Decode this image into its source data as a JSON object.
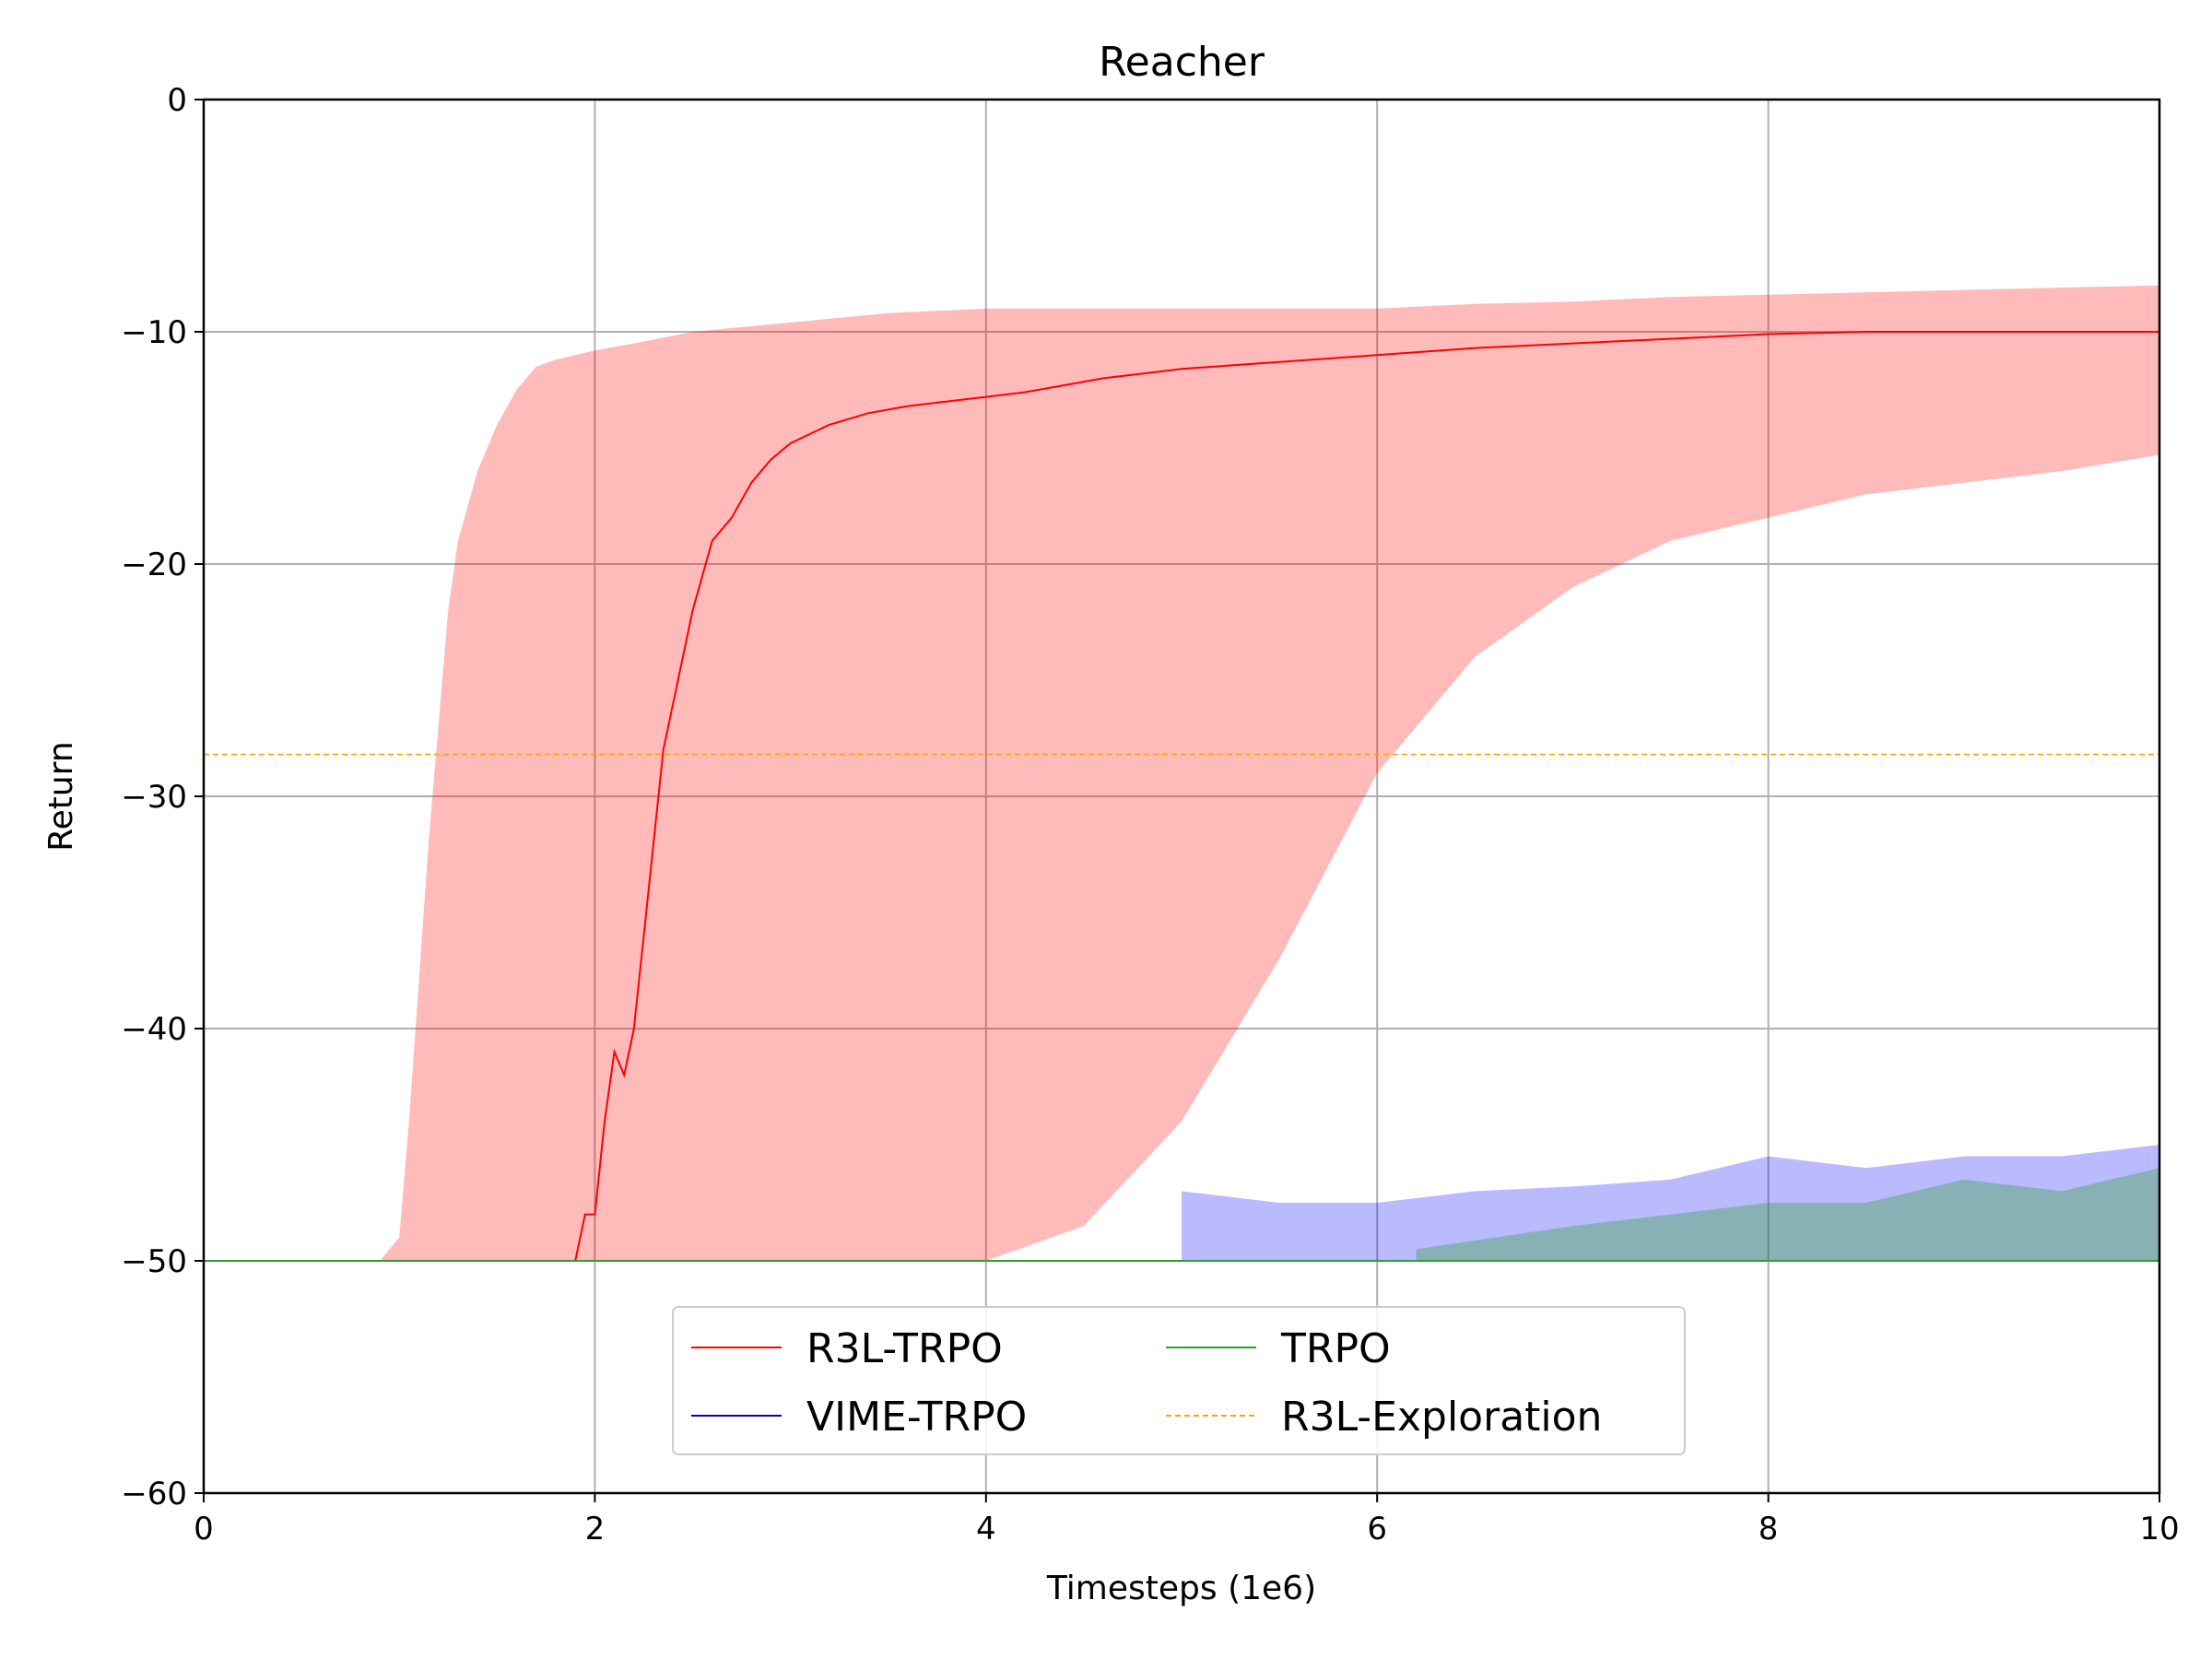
{
  "chart_data": {
    "type": "line",
    "title": "Reacher",
    "xlabel": "Timesteps (1e6)",
    "ylabel": "Return",
    "xlim": [
      0,
      10
    ],
    "ylim": [
      -60,
      0
    ],
    "xticks": [
      "0",
      "2",
      "4",
      "6",
      "8",
      "10"
    ],
    "yticks": [
      "0",
      "−10",
      "−20",
      "−30",
      "−40",
      "−50",
      "−60"
    ],
    "grid": true,
    "legend_position": "bottom-center",
    "series": [
      {
        "name": "R3L-TRPO",
        "color": "#ff0000",
        "style": "solid",
        "x": [
          0,
          1.9,
          1.95,
          2.0,
          2.05,
          2.1,
          2.15,
          2.2,
          2.25,
          2.3,
          2.35,
          2.4,
          2.45,
          2.5,
          2.6,
          2.7,
          2.8,
          2.9,
          3.0,
          3.2,
          3.4,
          3.6,
          3.8,
          4.0,
          4.2,
          4.4,
          4.6,
          4.8,
          5.0,
          5.5,
          6.0,
          6.5,
          7.0,
          7.5,
          8.0,
          8.5,
          9.0,
          9.5,
          10.0
        ],
        "mean": [
          -50,
          -50,
          -48,
          -48,
          -44,
          -41,
          -42,
          -40,
          -36,
          -32,
          -28,
          -26,
          -24,
          -22,
          -19,
          -18,
          -16.5,
          -15.5,
          -14.8,
          -14.0,
          -13.5,
          -13.2,
          -13.0,
          -12.8,
          -12.6,
          -12.3,
          -12.0,
          -11.8,
          -11.6,
          -11.3,
          -11.0,
          -10.7,
          -10.5,
          -10.3,
          -10.1,
          -10.0,
          -10.0,
          -10.0,
          -10.0
        ],
        "band_x": [
          0,
          0.9,
          1.0,
          1.05,
          1.1,
          1.15,
          1.2,
          1.25,
          1.3,
          1.4,
          1.5,
          1.6,
          1.7,
          1.8,
          1.9,
          2.0,
          2.2,
          2.5,
          3.0,
          3.5,
          4.0,
          4.5,
          5.0,
          5.5,
          6.0,
          6.5,
          7.0,
          7.5,
          8.0,
          8.5,
          9.0,
          9.5,
          10.0
        ],
        "band_upper": [
          -50,
          -50,
          -49,
          -44,
          -38,
          -32,
          -27,
          -22,
          -19,
          -16,
          -14,
          -12.5,
          -11.5,
          -11.2,
          -11.0,
          -10.8,
          -10.5,
          -10.0,
          -9.6,
          -9.2,
          -9.0,
          -9.0,
          -9.0,
          -9.0,
          -9.0,
          -8.8,
          -8.7,
          -8.5,
          -8.4,
          -8.3,
          -8.2,
          -8.1,
          -8.0
        ],
        "band_lower": [
          -50,
          -50,
          -50,
          -50,
          -50,
          -50,
          -50,
          -50,
          -50,
          -50,
          -50,
          -50,
          -50,
          -50,
          -50,
          -50,
          -50,
          -50,
          -50,
          -50,
          -50,
          -48.5,
          -44,
          -37,
          -29,
          -24,
          -21,
          -19,
          -18,
          -17,
          -16.5,
          -16.0,
          -15.3
        ]
      },
      {
        "name": "VIME-TRPO",
        "color": "#0000cc",
        "style": "solid",
        "x": [
          0,
          10
        ],
        "mean": [
          -50,
          -50
        ],
        "band_x": [
          5.0,
          5.5,
          6.0,
          6.5,
          7.0,
          7.5,
          8.0,
          8.5,
          9.0,
          9.5,
          10.0
        ],
        "band_upper": [
          -47,
          -47.5,
          -47.5,
          -47,
          -46.8,
          -46.5,
          -45.5,
          -46,
          -45.5,
          -45.5,
          -45
        ],
        "band_lower": [
          -50,
          -50,
          -50,
          -50,
          -50,
          -50,
          -50,
          -50,
          -50,
          -50,
          -50
        ]
      },
      {
        "name": "TRPO",
        "color": "#2ca02c",
        "style": "solid",
        "x": [
          0,
          10
        ],
        "mean": [
          -50,
          -50
        ],
        "band_x": [
          6.2,
          6.6,
          7.0,
          7.5,
          8.0,
          8.5,
          9.0,
          9.5,
          10.0
        ],
        "band_upper": [
          -49.5,
          -49,
          -48.5,
          -48,
          -47.5,
          -47.5,
          -46.5,
          -47,
          -46
        ],
        "band_lower": [
          -50,
          -50,
          -50,
          -50,
          -50,
          -50,
          -50,
          -50,
          -50
        ]
      },
      {
        "name": "R3L-Exploration",
        "color": "#ffa500",
        "style": "dashed",
        "x": [
          0,
          10
        ],
        "mean": [
          -28.2,
          -28.2
        ]
      }
    ]
  }
}
